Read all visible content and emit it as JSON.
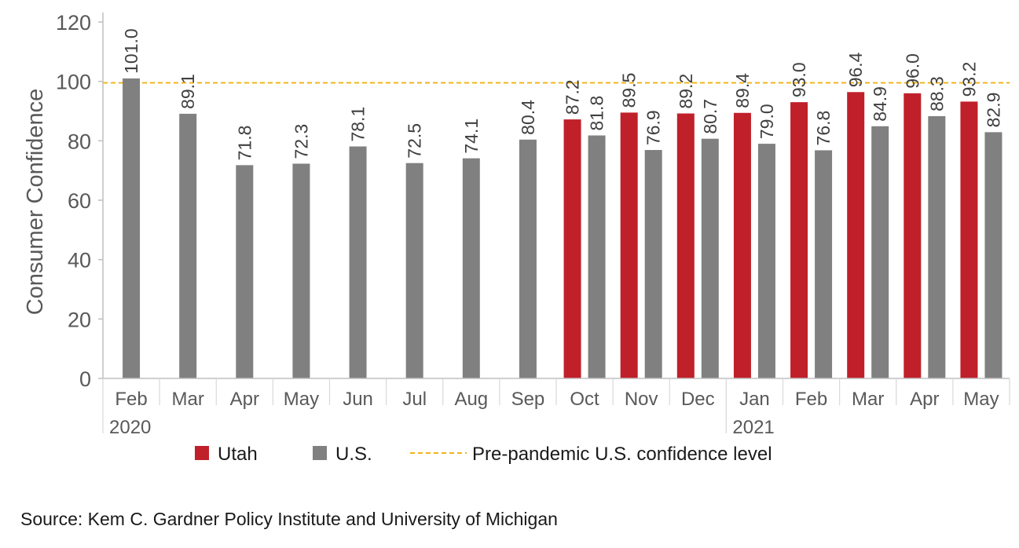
{
  "chart_data": {
    "type": "bar",
    "title": "",
    "xlabel": "",
    "ylabel": "Consumer Confidence",
    "ylim": [
      0,
      120
    ],
    "yticks": [
      0,
      20,
      40,
      60,
      80,
      100,
      120
    ],
    "grid": false,
    "legend_position": "bottom",
    "categories": [
      "Feb",
      "Mar",
      "Apr",
      "May",
      "Jun",
      "Jul",
      "Aug",
      "Sep",
      "Oct",
      "Nov",
      "Dec",
      "Jan",
      "Feb",
      "Mar",
      "Apr",
      "May"
    ],
    "year_labels": [
      {
        "index": 0,
        "label": "2020"
      },
      {
        "index": 11,
        "label": "2021"
      }
    ],
    "series": [
      {
        "name": "Utah",
        "color": "#C0202A",
        "values": [
          null,
          null,
          null,
          null,
          null,
          null,
          null,
          null,
          87.2,
          89.5,
          89.2,
          89.4,
          93.0,
          96.4,
          96.0,
          93.2
        ],
        "labels": [
          null,
          null,
          null,
          null,
          null,
          null,
          null,
          null,
          "87.2",
          "89.5",
          "89.2",
          "89.4",
          "93.0",
          "96.4",
          "96.0",
          "93.2"
        ]
      },
      {
        "name": "U.S.",
        "color": "#808080",
        "values": [
          101.0,
          89.1,
          71.8,
          72.3,
          78.1,
          72.5,
          74.1,
          80.4,
          81.8,
          76.9,
          80.7,
          79.0,
          76.8,
          84.9,
          88.3,
          82.9
        ],
        "labels": [
          "101.0",
          "89.1",
          "71.8",
          "72.3",
          "78.1",
          "72.5",
          "74.1",
          "80.4",
          "81.8",
          "76.9",
          "80.7",
          "79.0",
          "76.8",
          "84.9",
          "88.3",
          "82.9"
        ]
      }
    ],
    "reference_line": {
      "name": "Pre-pandemic U.S. confidence level",
      "value": 99.5,
      "color": "#F2B51A",
      "style": "dashed"
    }
  },
  "source": "Source: Kem C. Gardner Policy Institute and University of Michigan"
}
